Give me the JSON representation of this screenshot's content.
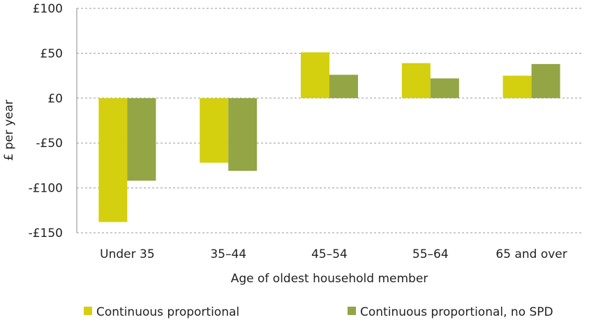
{
  "chart_data": {
    "type": "bar",
    "xlabel": "Age of oldest household member",
    "ylabel": "£ per year",
    "categories": [
      "Under 35",
      "35–44",
      "45–54",
      "55–64",
      "65 and over"
    ],
    "series": [
      {
        "name": "Continuous proportional",
        "color": "#d4cf0f",
        "values": [
          -138,
          -72,
          51,
          39,
          25
        ]
      },
      {
        "name": "Continuous proportional, no SPD",
        "color": "#93a545",
        "values": [
          -92,
          -81,
          26,
          22,
          38
        ]
      }
    ],
    "ylim": [
      -150,
      100
    ],
    "yticks": [
      100,
      50,
      0,
      -50,
      -100,
      -150
    ],
    "ytick_labels": [
      "£100",
      "£50",
      "£0",
      "-£50",
      "-£100",
      "-£150"
    ],
    "grid": true,
    "legend_position": "bottom"
  }
}
